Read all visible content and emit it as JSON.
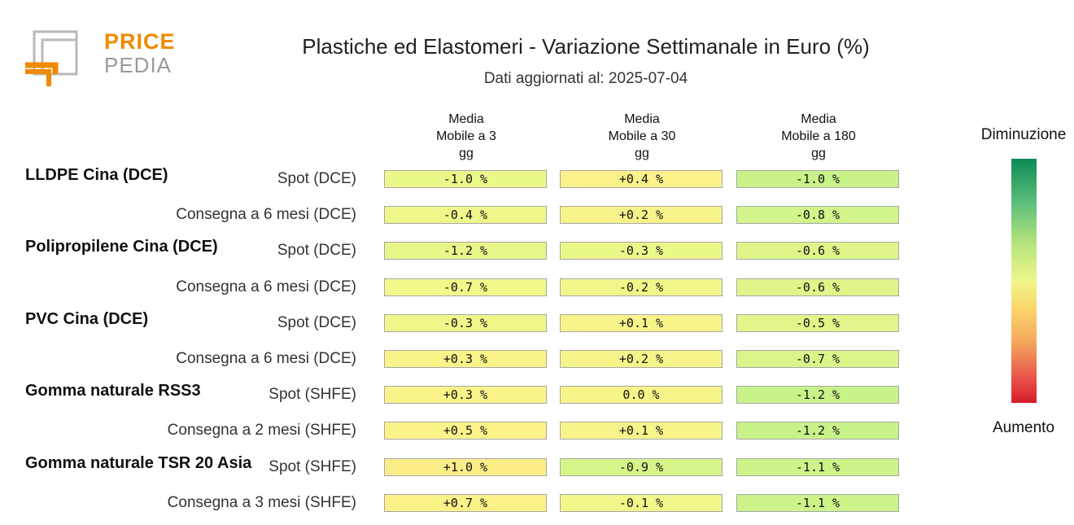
{
  "logo": {
    "line1": "PRICE",
    "line2": "PEDIA",
    "colors": {
      "orange": "#f08a00",
      "gray": "#9a9a9a"
    }
  },
  "chart_data": {
    "type": "table",
    "title": "Plastiche ed Elastomeri - Variazione Settimanale in Euro (%)",
    "subtitle": "Dati aggiornati al: 2025-07-04",
    "columns": [
      "Media\nMobile a 3\ngg",
      "Media\nMobile a 30\ngg",
      "Media\nMobile a 180\ngg"
    ],
    "groups": [
      {
        "name": "LLDPE Cina (DCE)",
        "rows": [
          {
            "label": "Spot (DCE)",
            "values": [
              -1.0,
              0.4,
              -1.0
            ],
            "display": [
              "-1.0 %",
              "+0.4 %",
              "-1.0 %"
            ]
          },
          {
            "label": "Consegna a 6 mesi (DCE)",
            "values": [
              -0.4,
              0.2,
              -0.8
            ],
            "display": [
              "-0.4 %",
              "+0.2 %",
              "-0.8 %"
            ]
          }
        ]
      },
      {
        "name": "Polipropilene Cina (DCE)",
        "rows": [
          {
            "label": "Spot (DCE)",
            "values": [
              -1.2,
              -0.3,
              -0.6
            ],
            "display": [
              "-1.2 %",
              "-0.3 %",
              "-0.6 %"
            ]
          },
          {
            "label": "Consegna a 6 mesi (DCE)",
            "values": [
              -0.7,
              -0.2,
              -0.6
            ],
            "display": [
              "-0.7 %",
              "-0.2 %",
              "-0.6 %"
            ]
          }
        ]
      },
      {
        "name": "PVC Cina (DCE)",
        "rows": [
          {
            "label": "Spot (DCE)",
            "values": [
              -0.3,
              0.1,
              -0.5
            ],
            "display": [
              "-0.3 %",
              "+0.1 %",
              "-0.5 %"
            ]
          },
          {
            "label": "Consegna a 6 mesi (DCE)",
            "values": [
              0.3,
              0.2,
              -0.7
            ],
            "display": [
              "+0.3 %",
              "+0.2 %",
              "-0.7 %"
            ]
          }
        ]
      },
      {
        "name": "Gomma naturale RSS3",
        "rows": [
          {
            "label": "Spot (SHFE)",
            "values": [
              0.3,
              0.0,
              -1.2
            ],
            "display": [
              "+0.3 %",
              "0.0 %",
              "-1.2 %"
            ]
          },
          {
            "label": "Consegna a 2 mesi (SHFE)",
            "values": [
              0.5,
              0.1,
              -1.2
            ],
            "display": [
              "+0.5 %",
              "+0.1 %",
              "-1.2 %"
            ]
          }
        ]
      },
      {
        "name": "Gomma naturale TSR 20 Asia",
        "rows": [
          {
            "label": "Spot (SHFE)",
            "values": [
              1.0,
              -0.9,
              -1.1
            ],
            "display": [
              "+1.0 %",
              "-0.9 %",
              "-1.1 %"
            ]
          },
          {
            "label": "Consegna a 3 mesi (SHFE)",
            "values": [
              0.7,
              -0.1,
              -1.1
            ],
            "display": [
              "+0.7 %",
              "-0.1 %",
              "-1.1 %"
            ]
          }
        ]
      }
    ],
    "legend": {
      "top": "Diminuzione",
      "bottom": "Aumento"
    },
    "colors": {
      "cells": [
        [
          "#ecf78a",
          "#fbf18a",
          "#c9f28a"
        ],
        [
          "#eef78a",
          "#f6f38a",
          "#d3f48a"
        ],
        [
          "#e8f68a",
          "#ecf78a",
          "#def58a"
        ],
        [
          "#effa8a",
          "#f0f68a",
          "#def58a"
        ],
        [
          "#f0f78a",
          "#f8f48a",
          "#e2f58a"
        ],
        [
          "#faf38a",
          "#f5f48a",
          "#daf58a"
        ],
        [
          "#faf38a",
          "#f7f48a",
          "#c8f28a"
        ],
        [
          "#fbf38a",
          "#f6f48a",
          "#c8f28a"
        ],
        [
          "#fbee88",
          "#d6f48a",
          "#cdf38a"
        ],
        [
          "#fbf189",
          "#f1f78a",
          "#cdf38a"
        ]
      ],
      "gradient": [
        "#0b8a57",
        "#5cbf7b",
        "#b7e47d",
        "#f1f58a",
        "#fbd46a",
        "#f5a85e",
        "#e8534a",
        "#d41c2a"
      ]
    }
  }
}
